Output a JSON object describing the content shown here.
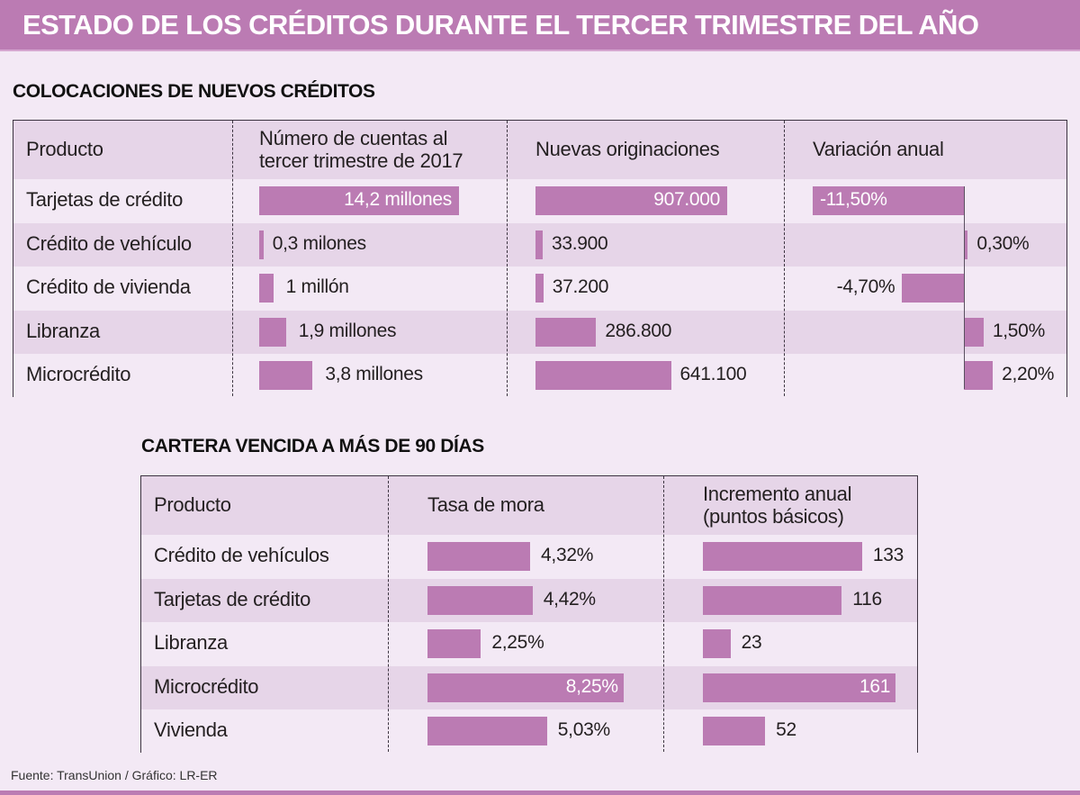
{
  "title": "ESTADO DE LOS CRÉDITOS DURANTE EL TERCER TRIMESTRE DEL AÑO",
  "colors": {
    "accent": "#bb7bb3",
    "background": "#f3e9f5",
    "row_shade": "#e6d5e8",
    "border": "#3c3440"
  },
  "footer": "Fuente: TransUnion / Gráfico: LR-ER",
  "chart_data": [
    {
      "type": "table",
      "title": "COLOCACIONES DE NUEVOS CRÉDITOS",
      "columns": [
        "Producto",
        "Número de cuentas al tercer trimestre de 2017",
        "Nuevas originaciones",
        "Variación anual"
      ],
      "header_lines": {
        "product": "Producto",
        "accounts_line1": "Número de cuentas al",
        "accounts_line2": "tercer trimestre de 2017",
        "originations": "Nuevas originaciones",
        "variation": "Variación anual"
      },
      "rows": [
        {
          "product": "Tarjetas de crédito",
          "accounts_millions": 14.2,
          "accounts_label": "14,2 millones",
          "originations": 907000,
          "originations_label": "907.000",
          "variation_pct": -11.5,
          "variation_label": "-11,50%"
        },
        {
          "product": "Crédito de vehículo",
          "accounts_millions": 0.3,
          "accounts_label": "0,3 milones",
          "originations": 33900,
          "originations_label": "33.900",
          "variation_pct": 0.3,
          "variation_label": "0,30%"
        },
        {
          "product": "Crédito de vivienda",
          "accounts_millions": 1.0,
          "accounts_label": "1 millón",
          "originations": 37200,
          "originations_label": "37.200",
          "variation_pct": -4.7,
          "variation_label": "-4,70%"
        },
        {
          "product": "Libranza",
          "accounts_millions": 1.9,
          "accounts_label": "1,9 millones",
          "originations": 286800,
          "originations_label": "286.800",
          "variation_pct": 1.5,
          "variation_label": "1,50%"
        },
        {
          "product": "Microcrédito",
          "accounts_millions": 3.8,
          "accounts_label": "3,8 millones",
          "originations": 641100,
          "originations_label": "641.100",
          "variation_pct": 2.2,
          "variation_label": "2,20%"
        }
      ]
    },
    {
      "type": "table",
      "title": "CARTERA VENCIDA A MÁS DE 90 DÍAS",
      "columns": [
        "Producto",
        "Tasa de mora",
        "Incremento anual (puntos básicos)"
      ],
      "header_lines": {
        "product": "Producto",
        "rate": "Tasa de mora",
        "increase_line1": "Incremento anual",
        "increase_line2": "(puntos básicos)"
      },
      "rows": [
        {
          "product": "Crédito de vehículos",
          "rate_pct": 4.32,
          "rate_label": "4,32%",
          "increase_bp": 133,
          "increase_label": "133"
        },
        {
          "product": "Tarjetas de crédito",
          "rate_pct": 4.42,
          "rate_label": "4,42%",
          "increase_bp": 116,
          "increase_label": "116"
        },
        {
          "product": "Libranza",
          "rate_pct": 2.25,
          "rate_label": "2,25%",
          "increase_bp": 23,
          "increase_label": "23"
        },
        {
          "product": "Microcrédito",
          "rate_pct": 8.25,
          "rate_label": "8,25%",
          "increase_bp": 161,
          "increase_label": "161"
        },
        {
          "product": "Vivienda",
          "rate_pct": 5.03,
          "rate_label": "5,03%",
          "increase_bp": 52,
          "increase_label": "52"
        }
      ]
    }
  ]
}
